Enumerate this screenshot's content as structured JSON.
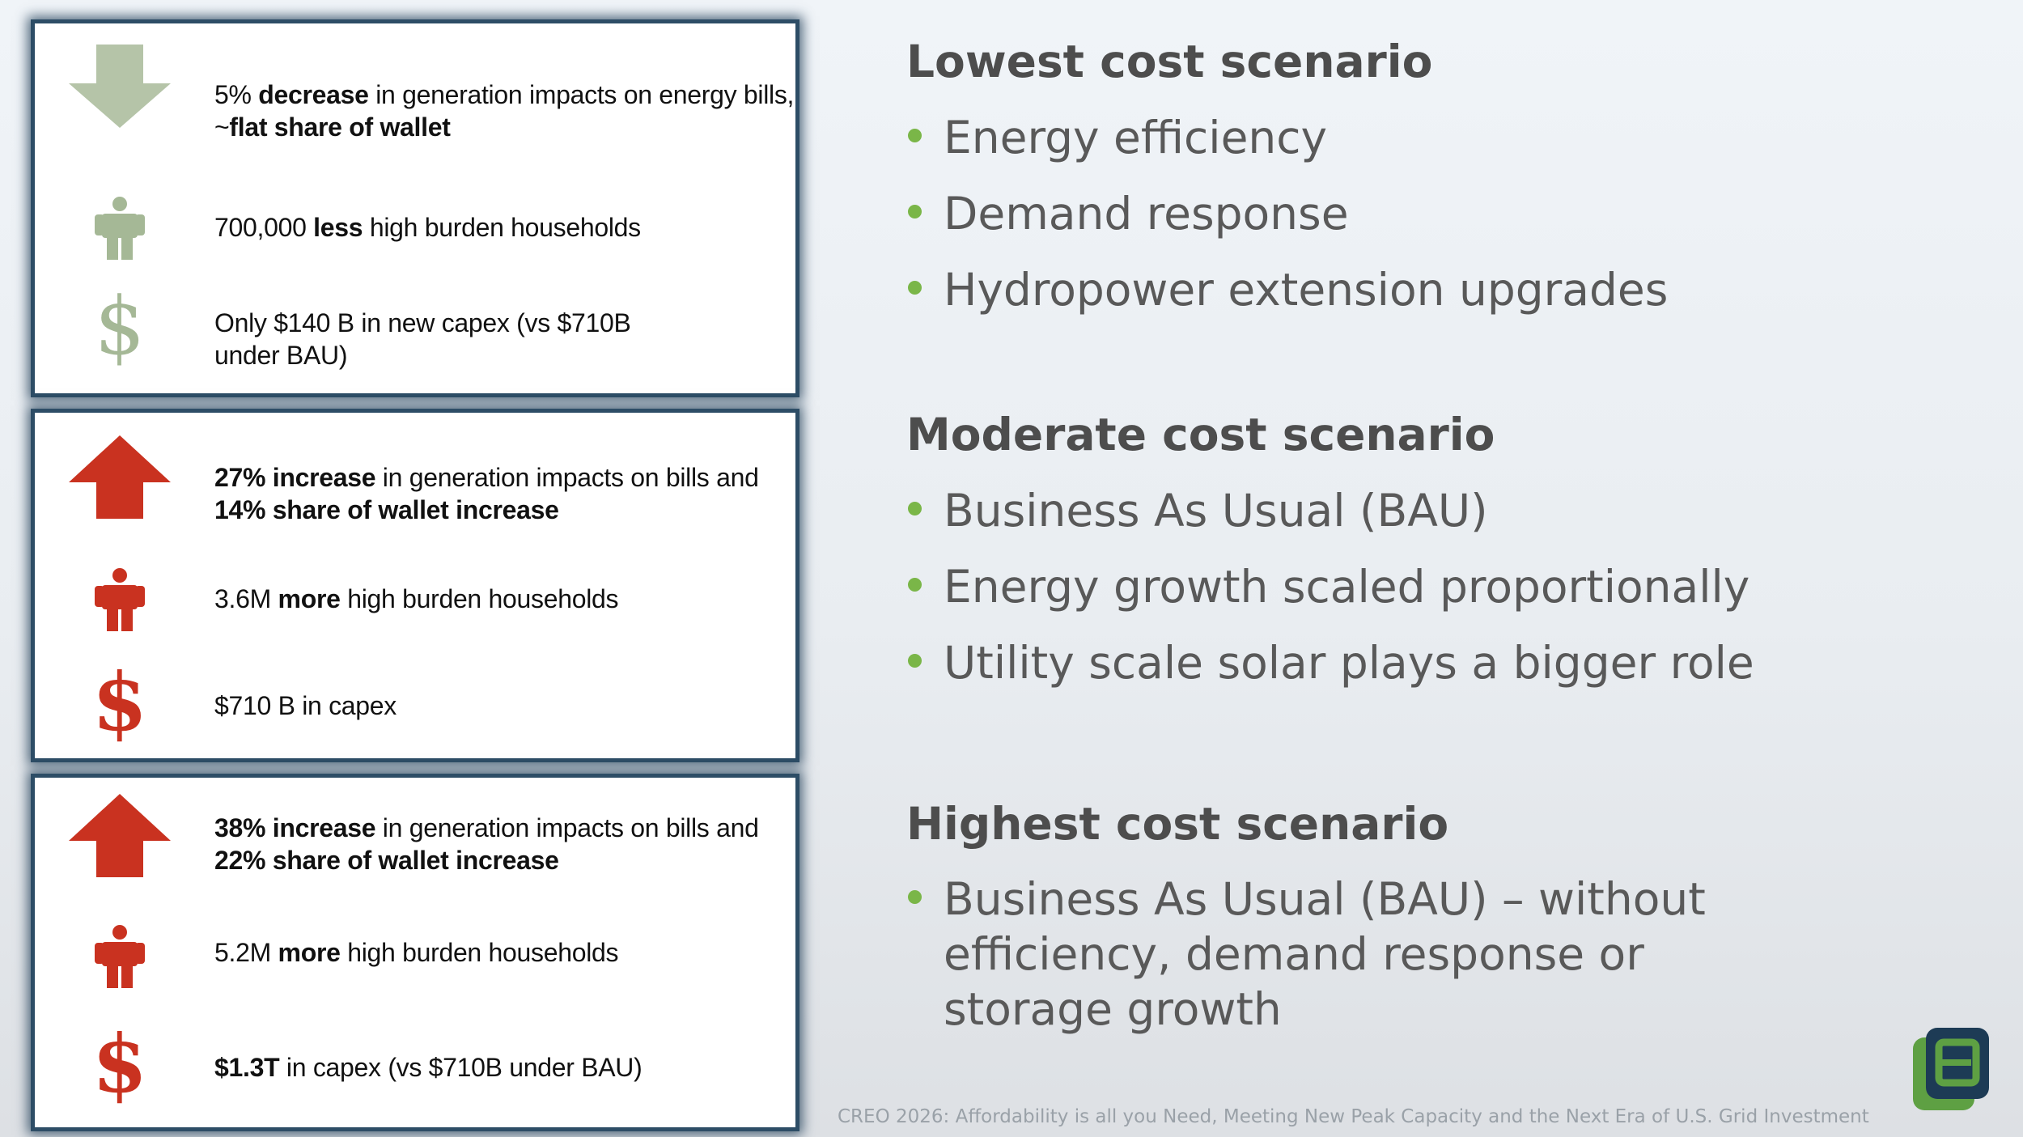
{
  "colors": {
    "down_arrow": "#b5c4a8",
    "low_icon": "#a5b896",
    "high_icon": "#c93220",
    "bullet": "#7ab648",
    "logo_green": "#5ea043",
    "logo_navy": "#1d3b55"
  },
  "panels": {
    "low": {
      "arrow_icon": "down-arrow",
      "rows": [
        {
          "icon": "down-arrow-icon",
          "b1": "",
          "s1": "5% ",
          "b2": "decrease",
          "s2": " in generation impacts on energy bills, ~",
          "b3": "flat share of wallet",
          "s3": ""
        },
        {
          "icon": "person-icon",
          "b1": "",
          "s1": "700,000 ",
          "b2": "less",
          "s2": " high burden households",
          "b3": "",
          "s3": ""
        },
        {
          "icon": "dollar-icon",
          "glyph": "$",
          "b1": "",
          "s1": "Only $140 B in new capex (vs $710B under BAU)",
          "b2": "",
          "s2": "",
          "b3": "",
          "s3": ""
        }
      ]
    },
    "mid": {
      "rows": [
        {
          "icon": "up-arrow-icon",
          "b1": "27% increase",
          "s1": " in generation impacts on bills and ",
          "b2": "14% share of wallet increase",
          "s2": "",
          "b3": "",
          "s3": ""
        },
        {
          "icon": "person-icon",
          "b1": "",
          "s1": "3.6M ",
          "b2": "more",
          "s2": " high burden households",
          "b3": "",
          "s3": ""
        },
        {
          "icon": "dollar-icon",
          "glyph": "$",
          "b1": "",
          "s1": "$710 B in capex",
          "b2": "",
          "s2": "",
          "b3": "",
          "s3": ""
        }
      ]
    },
    "high": {
      "rows": [
        {
          "icon": "up-arrow-icon",
          "b1": "38% increase",
          "s1": " in generation impacts on bills and ",
          "b2": "22% share of wallet increase",
          "s2": "",
          "b3": "",
          "s3": ""
        },
        {
          "icon": "person-icon",
          "b1": "",
          "s1": "5.2M ",
          "b2": "more",
          "s2": " high burden households",
          "b3": "",
          "s3": ""
        },
        {
          "icon": "dollar-icon",
          "glyph": "$",
          "b1": "$1.3T",
          "s1": " in capex (vs $710B under BAU)",
          "b2": "",
          "s2": "",
          "b3": "",
          "s3": ""
        }
      ]
    }
  },
  "scenarios": [
    {
      "title": "Lowest cost scenario",
      "bullets": [
        "Energy efficiency",
        "Demand response",
        "Hydropower extension upgrades"
      ]
    },
    {
      "title": "Moderate cost scenario",
      "bullets": [
        "Business As Usual (BAU)",
        "Energy growth scaled proportionally",
        "Utility scale solar plays a bigger role"
      ]
    },
    {
      "title": "Highest cost scenario",
      "bullets": [
        "Business As Usual (BAU) – without efficiency, demand response or storage growth"
      ]
    }
  ],
  "footer": "CREO 2026: Affordability is all you Need, Meeting New Peak Capacity and the Next Era of U.S. Grid Investment"
}
